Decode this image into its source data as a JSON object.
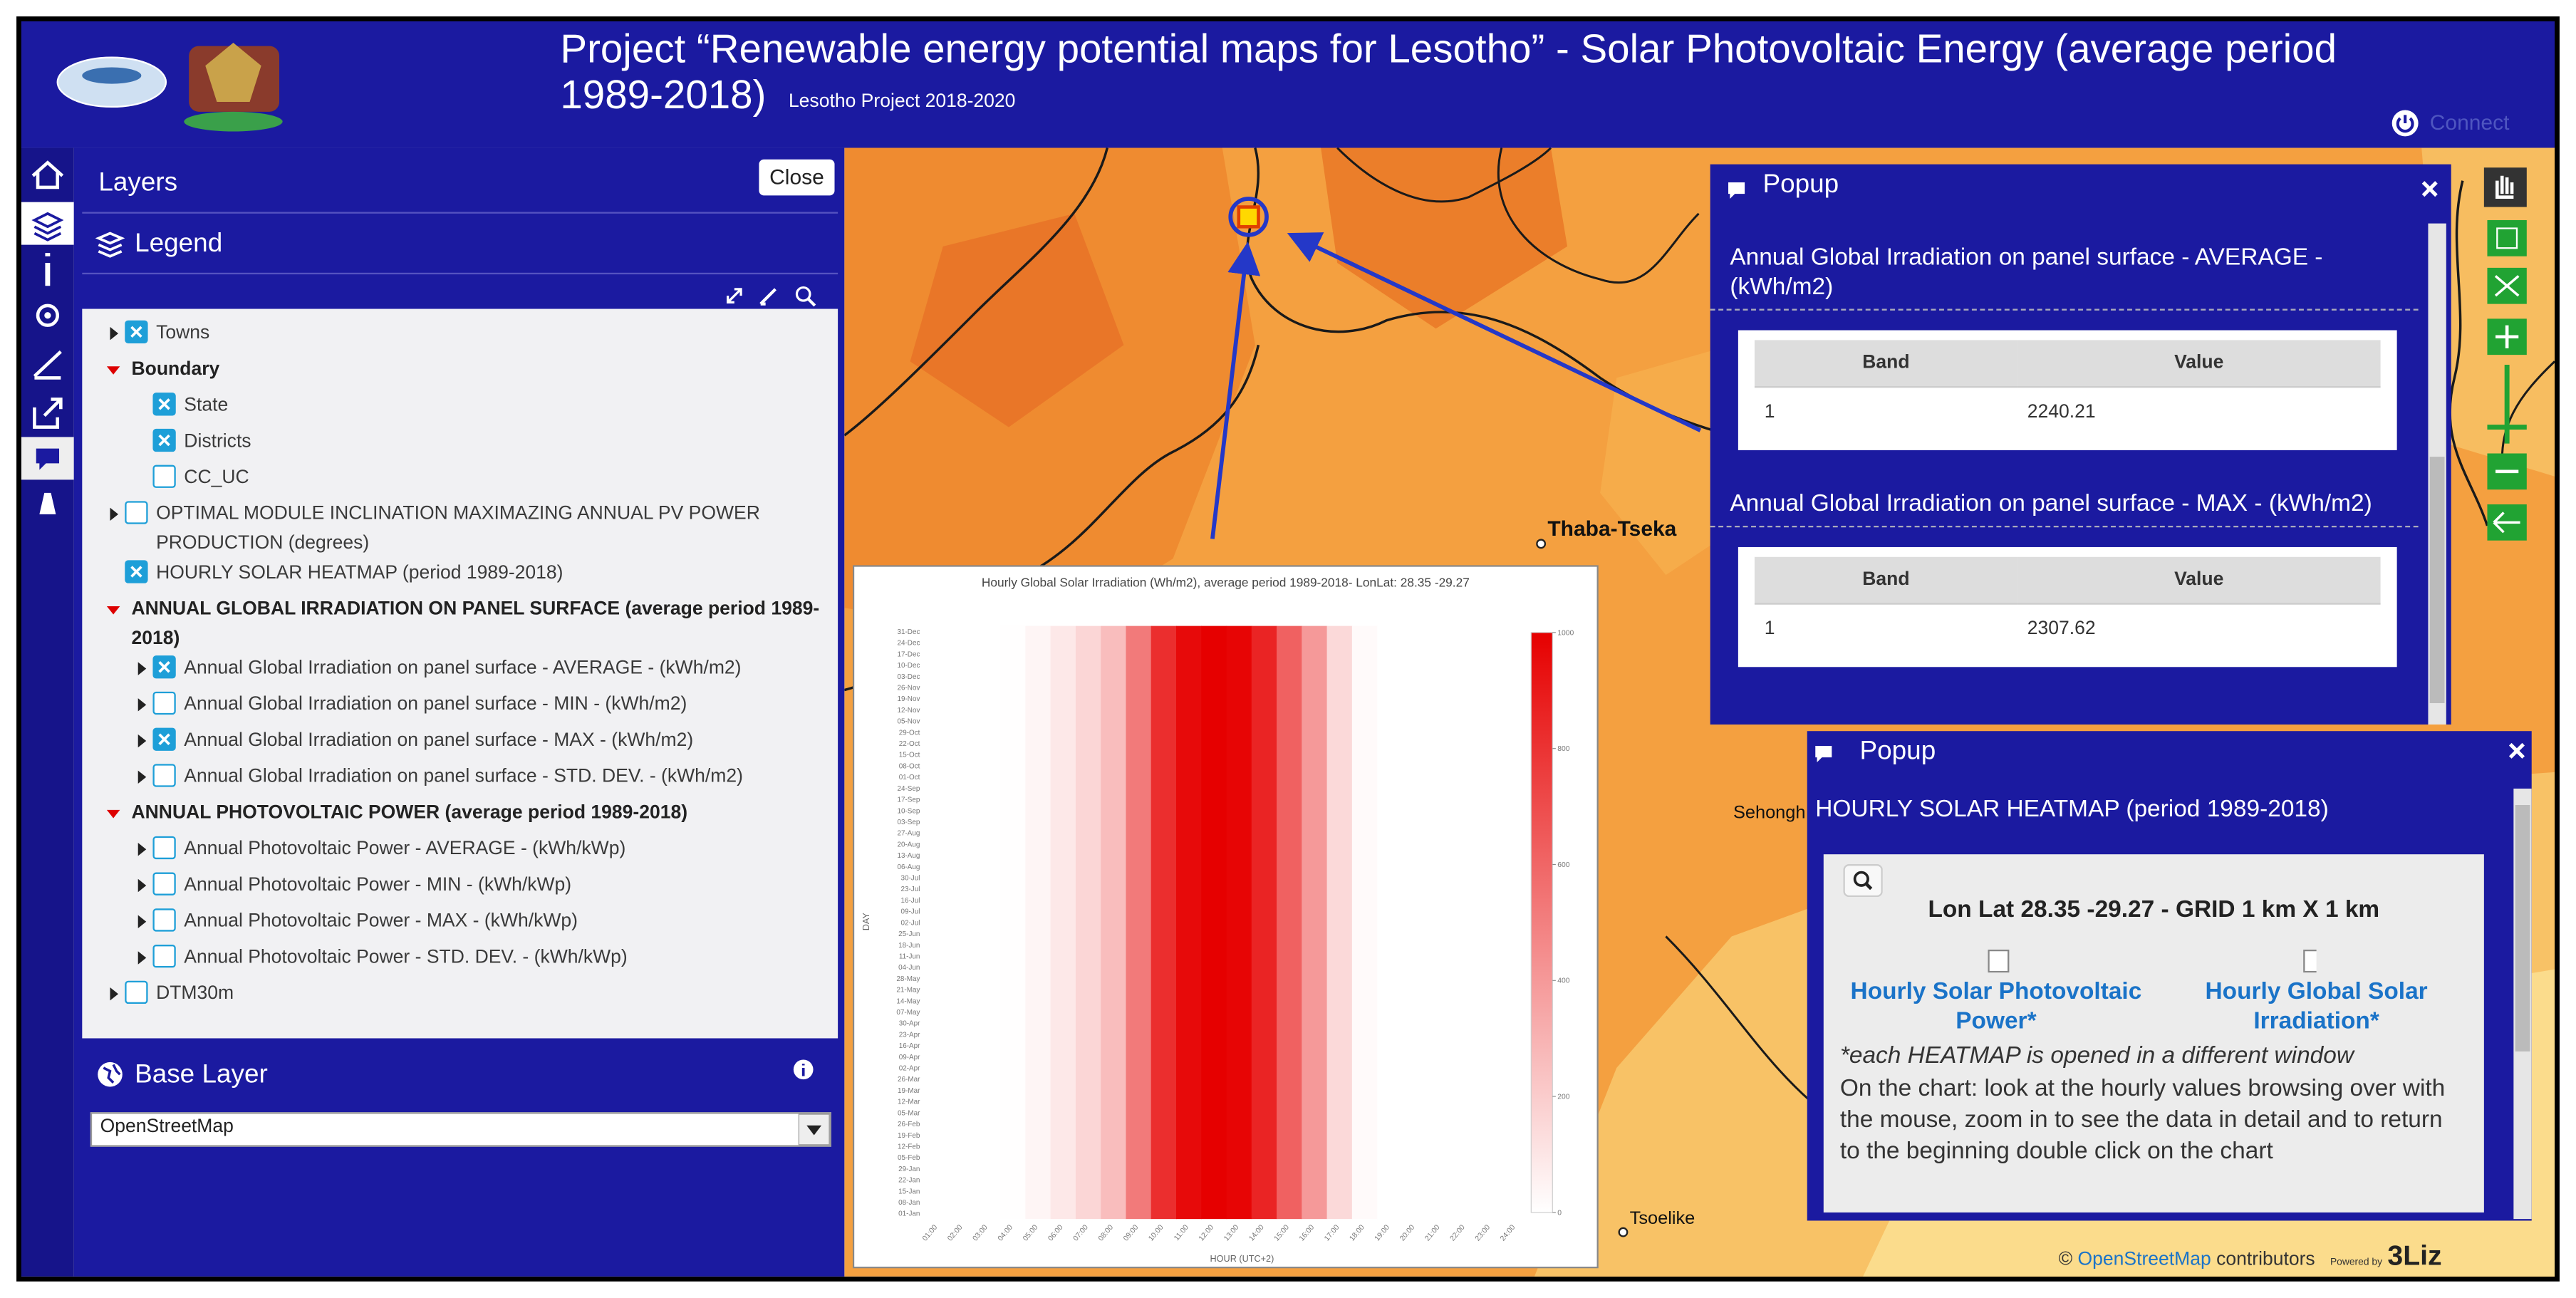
{
  "header": {
    "title_line1": "Project “Renewable energy potential maps for Lesotho” - Solar Photovoltaic Energy (average period",
    "title_line2": "1989-2018)",
    "subtitle": "Lesotho Project 2018-2020",
    "connect": "Connect"
  },
  "sidebar": {
    "layers_title": "Layers",
    "close": "Close",
    "legend_title": "Legend",
    "tree": [
      {
        "label": "Towns",
        "expander": "collapsed",
        "checked": true
      },
      {
        "label": "Boundary",
        "expander": "expanded",
        "children": [
          {
            "label": "State",
            "checked": true
          },
          {
            "label": "Districts",
            "checked": true
          },
          {
            "label": "CC_UC",
            "checked": false
          }
        ]
      },
      {
        "label": "OPTIMAL MODULE INCLINATION MAXIMAZING ANNUAL PV POWER PRODUCTION (degrees)",
        "expander": "collapsed",
        "checked": false
      },
      {
        "label": "HOURLY SOLAR HEATMAP (period 1989-2018)",
        "checked": true
      },
      {
        "label": "ANNUAL GLOBAL IRRADIATION ON PANEL SURFACE (average period 1989-2018)",
        "expander": "expanded",
        "children": [
          {
            "label": "Annual Global Irradiation on panel surface - AVERAGE - (kWh/m2)",
            "expander": "collapsed",
            "checked": true
          },
          {
            "label": "Annual Global Irradiation on panel surface - MIN - (kWh/m2)",
            "expander": "collapsed",
            "checked": false
          },
          {
            "label": "Annual Global Irradiation on panel surface - MAX - (kWh/m2)",
            "expander": "collapsed",
            "checked": true
          },
          {
            "label": "Annual Global Irradiation on panel surface - STD. DEV. - (kWh/m2)",
            "expander": "collapsed",
            "checked": false
          }
        ]
      },
      {
        "label": "ANNUAL PHOTOVOLTAIC POWER (average period 1989-2018)",
        "expander": "expanded",
        "children": [
          {
            "label": "Annual Photovoltaic Power - AVERAGE - (kWh/kWp)",
            "expander": "collapsed",
            "checked": false
          },
          {
            "label": "Annual Photovoltaic Power - MIN - (kWh/kWp)",
            "expander": "collapsed",
            "checked": false
          },
          {
            "label": "Annual Photovoltaic Power - MAX - (kWh/kWp)",
            "expander": "collapsed",
            "checked": false
          },
          {
            "label": "Annual Photovoltaic Power - STD. DEV. - (kWh/kWp)",
            "expander": "collapsed",
            "checked": false
          }
        ]
      },
      {
        "label": "DTM30m",
        "expander": "collapsed",
        "checked": false
      }
    ],
    "base_layer_title": "Base Layer",
    "base_layer_select": "OpenStreetMap"
  },
  "map": {
    "places": [
      "Thaba-Tseka",
      "Sehongh",
      "Tsoelike"
    ]
  },
  "attribution": {
    "copyright": "©",
    "link": "OpenStreetMap",
    "text": "contributors",
    "powered": "Powered by",
    "brand": "3Liz"
  },
  "popup_1": {
    "header": "Popup",
    "sections": [
      {
        "title": "Annual Global Irradiation on panel surface - AVERAGE - (kWh/m2)",
        "columns": [
          "Band",
          "Value"
        ],
        "rows": [
          [
            1,
            2240.21
          ]
        ]
      },
      {
        "title": "Annual Global Irradiation on panel surface - MAX - (kWh/m2)",
        "columns": [
          "Band",
          "Value"
        ],
        "rows": [
          [
            1,
            2307.62
          ]
        ]
      }
    ]
  },
  "popup_2": {
    "header": "Popup",
    "title": "HOURLY SOLAR HEATMAP (period 1989-2018)",
    "coords": "Lon Lat 28.35 -29.27 - GRID 1 km X 1 km",
    "links": [
      "Hourly Solar Photovoltaic Power*",
      "Hourly Global Solar Irradiation*"
    ],
    "note": "*each HEATMAP is opened in a different window",
    "text": "On the chart: look at the hourly values browsing over with the mouse, zoom in to see the data in detail and to return to the beginning double click on the chart"
  },
  "chart_data": {
    "type": "heatmap",
    "title": "Hourly Global Solar Irradiation (Wh/m2), average period 1989-2018- LonLat: 28.35 -29.27",
    "x_label": "HOUR (UTC+2)",
    "y_label": "DAY",
    "x": [
      "01:00",
      "02:00",
      "03:00",
      "04:00",
      "05:00",
      "06:00",
      "07:00",
      "08:00",
      "09:00",
      "10:00",
      "11:00",
      "12:00",
      "13:00",
      "14:00",
      "15:00",
      "16:00",
      "17:00",
      "18:00",
      "19:00",
      "20:00",
      "21:00",
      "22:00",
      "23:00",
      "24:00"
    ],
    "y": [
      "01-Jan",
      "08-Jan",
      "15-Jan",
      "22-Jan",
      "29-Jan",
      "05-Feb",
      "12-Feb",
      "19-Feb",
      "26-Feb",
      "05-Mar",
      "12-Mar",
      "19-Mar",
      "26-Mar",
      "02-Apr",
      "09-Apr",
      "16-Apr",
      "23-Apr",
      "30-Apr",
      "07-May",
      "14-May",
      "21-May",
      "28-May",
      "04-Jun",
      "11-Jun",
      "18-Jun",
      "25-Jun",
      "02-Jul",
      "09-Jul",
      "16-Jul",
      "23-Jul",
      "30-Jul",
      "06-Aug",
      "13-Aug",
      "20-Aug",
      "27-Aug",
      "03-Sep",
      "10-Sep",
      "17-Sep",
      "24-Sep",
      "01-Oct",
      "08-Oct",
      "15-Oct",
      "22-Oct",
      "29-Oct",
      "05-Nov",
      "12-Nov",
      "19-Nov",
      "26-Nov",
      "03-Dec",
      "10-Dec",
      "17-Dec",
      "24-Dec",
      "31-Dec"
    ],
    "values": [
      0,
      0,
      0,
      5,
      40,
      90,
      160,
      260,
      520,
      820,
      960,
      1000,
      980,
      860,
      620,
      400,
      150,
      20,
      0,
      0,
      0,
      0,
      0,
      0
    ],
    "color": "#e60000",
    "zlim": [
      0,
      1000
    ],
    "zticks": [
      0,
      200,
      400,
      600,
      800,
      1000
    ]
  }
}
